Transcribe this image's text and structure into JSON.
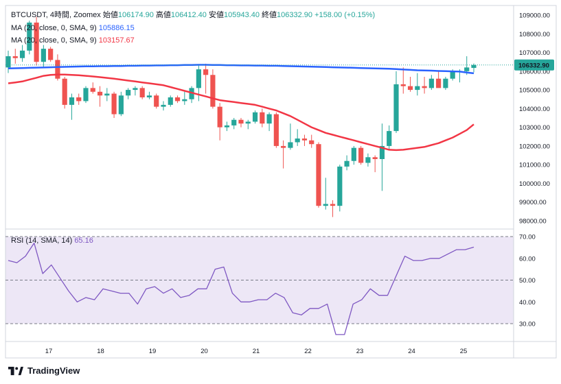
{
  "legend": {
    "symbol": "BTCUSDT, 4時間, Zoomex",
    "open_label": "始値",
    "open": "106174.90",
    "high_label": "高値",
    "high": "106412.40",
    "low_label": "安値",
    "low": "105943.40",
    "close_label": "終値",
    "close": "106332.90",
    "change": "+158.00 (+0.15%)",
    "ma1_label": "MA (20, close, 0, SMA, 9)",
    "ma1_value": "105886.15",
    "ma2_label": "MA (20, close, 0, SMA, 9)",
    "ma2_value": "103157.67",
    "rsi_label": "RSI (14, SMA, 14)",
    "rsi_value": "65.16"
  },
  "price_tag": "106332.90",
  "brand": "TradingView",
  "colors": {
    "up": "#26a69a",
    "down": "#ef5350",
    "ma_blue": "#2962ff",
    "ma_red": "#f23645",
    "rsi_line": "#7e57c2",
    "rsi_band": "#ede7f6",
    "price_tag_bg": "#26a69a"
  },
  "chart_data": [
    {
      "type": "candlestick",
      "x_ticks": [
        "17",
        "18",
        "19",
        "20",
        "21",
        "22",
        "23",
        "24",
        "25"
      ],
      "ylim": [
        97500,
        109200
      ],
      "y_ticks": [
        98000,
        99000,
        100000,
        101000,
        102000,
        103000,
        104000,
        105000,
        106000,
        107000,
        108000,
        109000
      ],
      "candles": [
        {
          "o": 106200,
          "h": 107100,
          "l": 105900,
          "c": 106800
        },
        {
          "o": 106800,
          "h": 107200,
          "l": 106400,
          "c": 106700
        },
        {
          "o": 106700,
          "h": 107400,
          "l": 106500,
          "c": 107100
        },
        {
          "o": 107100,
          "h": 108700,
          "l": 106900,
          "c": 108600
        },
        {
          "o": 108600,
          "h": 108900,
          "l": 106300,
          "c": 106500
        },
        {
          "o": 106500,
          "h": 107400,
          "l": 106200,
          "c": 107200
        },
        {
          "o": 107200,
          "h": 107300,
          "l": 106500,
          "c": 106600
        },
        {
          "o": 106600,
          "h": 106900,
          "l": 105500,
          "c": 105600
        },
        {
          "o": 105600,
          "h": 105700,
          "l": 104000,
          "c": 104200
        },
        {
          "o": 104200,
          "h": 104800,
          "l": 103400,
          "c": 104600
        },
        {
          "o": 104600,
          "h": 104800,
          "l": 104200,
          "c": 104400
        },
        {
          "o": 104400,
          "h": 105200,
          "l": 104300,
          "c": 105100
        },
        {
          "o": 105100,
          "h": 105400,
          "l": 104800,
          "c": 104900
        },
        {
          "o": 104900,
          "h": 105200,
          "l": 104100,
          "c": 104700
        },
        {
          "o": 104700,
          "h": 105100,
          "l": 104400,
          "c": 104800
        },
        {
          "o": 104800,
          "h": 104900,
          "l": 103500,
          "c": 103700
        },
        {
          "o": 103700,
          "h": 104900,
          "l": 103600,
          "c": 104700
        },
        {
          "o": 104700,
          "h": 105100,
          "l": 104500,
          "c": 105000
        },
        {
          "o": 105000,
          "h": 105200,
          "l": 104700,
          "c": 105100
        },
        {
          "o": 105100,
          "h": 105200,
          "l": 104500,
          "c": 104600
        },
        {
          "o": 104600,
          "h": 104900,
          "l": 104500,
          "c": 104700
        },
        {
          "o": 104700,
          "h": 104800,
          "l": 104000,
          "c": 104100
        },
        {
          "o": 104100,
          "h": 104400,
          "l": 103900,
          "c": 104200
        },
        {
          "o": 104200,
          "h": 104700,
          "l": 104100,
          "c": 104600
        },
        {
          "o": 104600,
          "h": 104700,
          "l": 104300,
          "c": 104400
        },
        {
          "o": 104400,
          "h": 104900,
          "l": 104200,
          "c": 104500
        },
        {
          "o": 104500,
          "h": 105200,
          "l": 104300,
          "c": 105100
        },
        {
          "o": 105100,
          "h": 106300,
          "l": 104400,
          "c": 106100
        },
        {
          "o": 106100,
          "h": 106400,
          "l": 104800,
          "c": 105800
        },
        {
          "o": 105800,
          "h": 106100,
          "l": 104000,
          "c": 104100
        },
        {
          "o": 104100,
          "h": 104300,
          "l": 102300,
          "c": 103000
        },
        {
          "o": 103000,
          "h": 103300,
          "l": 102800,
          "c": 103100
        },
        {
          "o": 103100,
          "h": 103500,
          "l": 102900,
          "c": 103400
        },
        {
          "o": 103400,
          "h": 103500,
          "l": 103000,
          "c": 103200
        },
        {
          "o": 103200,
          "h": 103400,
          "l": 102900,
          "c": 103300
        },
        {
          "o": 103300,
          "h": 103900,
          "l": 103200,
          "c": 103800
        },
        {
          "o": 103800,
          "h": 104000,
          "l": 103000,
          "c": 103200
        },
        {
          "o": 103200,
          "h": 103800,
          "l": 102800,
          "c": 103700
        },
        {
          "o": 103700,
          "h": 103800,
          "l": 101900,
          "c": 102000
        },
        {
          "o": 102000,
          "h": 102300,
          "l": 100800,
          "c": 101900
        },
        {
          "o": 101900,
          "h": 103200,
          "l": 101800,
          "c": 102200
        },
        {
          "o": 102200,
          "h": 102900,
          "l": 102000,
          "c": 102400
        },
        {
          "o": 102400,
          "h": 102600,
          "l": 102000,
          "c": 102300
        },
        {
          "o": 102300,
          "h": 102600,
          "l": 101900,
          "c": 102100
        },
        {
          "o": 102100,
          "h": 102200,
          "l": 98700,
          "c": 98800
        },
        {
          "o": 98800,
          "h": 100300,
          "l": 98600,
          "c": 98900
        },
        {
          "o": 98900,
          "h": 99100,
          "l": 98200,
          "c": 98800
        },
        {
          "o": 98800,
          "h": 101000,
          "l": 98500,
          "c": 100900
        },
        {
          "o": 100900,
          "h": 101500,
          "l": 100700,
          "c": 101200
        },
        {
          "o": 101200,
          "h": 102000,
          "l": 101000,
          "c": 101900
        },
        {
          "o": 101900,
          "h": 102000,
          "l": 101000,
          "c": 101100
        },
        {
          "o": 101100,
          "h": 101600,
          "l": 100900,
          "c": 101400
        },
        {
          "o": 101400,
          "h": 101500,
          "l": 100600,
          "c": 101300
        },
        {
          "o": 101300,
          "h": 103200,
          "l": 99600,
          "c": 102000
        },
        {
          "o": 102000,
          "h": 103100,
          "l": 101800,
          "c": 102800
        },
        {
          "o": 102800,
          "h": 106000,
          "l": 102700,
          "c": 105300
        },
        {
          "o": 105300,
          "h": 106200,
          "l": 104800,
          "c": 105200
        },
        {
          "o": 105200,
          "h": 105700,
          "l": 104900,
          "c": 105000
        },
        {
          "o": 105000,
          "h": 105900,
          "l": 104700,
          "c": 105200
        },
        {
          "o": 105200,
          "h": 105700,
          "l": 104800,
          "c": 105100
        },
        {
          "o": 105100,
          "h": 105800,
          "l": 105000,
          "c": 105600
        },
        {
          "o": 105600,
          "h": 106000,
          "l": 105200,
          "c": 105100
        },
        {
          "o": 105100,
          "h": 105700,
          "l": 105000,
          "c": 105600
        },
        {
          "o": 105600,
          "h": 106100,
          "l": 105500,
          "c": 106000
        },
        {
          "o": 106000,
          "h": 106100,
          "l": 105400,
          "c": 106000
        },
        {
          "o": 106000,
          "h": 106800,
          "l": 105800,
          "c": 106200
        },
        {
          "o": 106174.9,
          "h": 106412.4,
          "l": 105943.4,
          "c": 106332.9
        }
      ],
      "ma_blue": [
        106150,
        106160,
        106170,
        106180,
        106190,
        106200,
        106210,
        106220,
        106230,
        106240,
        106250,
        106260,
        106260,
        106270,
        106270,
        106280,
        106280,
        106290,
        106290,
        106300,
        106300,
        106310,
        106310,
        106320,
        106320,
        106330,
        106330,
        106340,
        106340,
        106330,
        106330,
        106320,
        106320,
        106310,
        106310,
        106300,
        106300,
        106290,
        106290,
        106280,
        106270,
        106260,
        106250,
        106240,
        106230,
        106220,
        106210,
        106200,
        106190,
        106180,
        106170,
        106160,
        106150,
        106140,
        106130,
        106110,
        106090,
        106070,
        106050,
        106040,
        106030,
        106010,
        106000,
        105990,
        105980,
        105930,
        105886.15
      ],
      "ma_red": [
        105350,
        105400,
        105450,
        105550,
        105650,
        105750,
        105800,
        105820,
        105820,
        105800,
        105780,
        105750,
        105720,
        105680,
        105640,
        105600,
        105550,
        105500,
        105450,
        105400,
        105350,
        105300,
        105250,
        105150,
        105050,
        104950,
        104850,
        104750,
        104650,
        104550,
        104450,
        104400,
        104350,
        104300,
        104250,
        104200,
        104100,
        104000,
        103900,
        103750,
        103600,
        103400,
        103200,
        103000,
        102850,
        102700,
        102600,
        102500,
        102400,
        102300,
        102200,
        102100,
        102000,
        101900,
        101800,
        101780,
        101800,
        101850,
        101900,
        101950,
        102050,
        102150,
        102300,
        102450,
        102650,
        102850,
        103157.67
      ]
    },
    {
      "type": "line",
      "title": "RSI",
      "ylim": [
        20,
        73
      ],
      "y_ticks": [
        30,
        40,
        50,
        60,
        70
      ],
      "band": [
        30,
        70
      ],
      "midline": 50,
      "values": [
        59,
        58,
        61,
        67,
        53,
        57,
        51,
        45,
        40,
        42,
        41,
        46,
        45,
        44,
        44,
        39,
        46,
        47,
        44,
        46,
        42,
        43,
        46,
        46,
        55,
        56,
        44,
        40,
        40,
        41,
        41,
        44,
        42,
        35,
        34,
        37,
        37,
        39,
        25,
        25,
        39,
        41,
        46,
        43,
        43,
        52,
        61,
        59,
        59,
        60,
        60,
        62,
        64,
        64,
        65.16
      ]
    }
  ]
}
